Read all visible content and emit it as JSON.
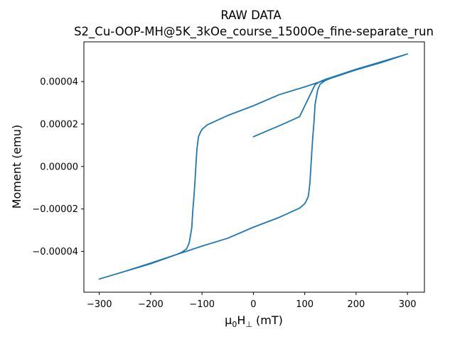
{
  "chart_data": {
    "type": "line",
    "title_line1": "RAW DATA",
    "title_line2": "S2_Cu-OOP-MH@5K_3kOe_course_1500Oe_fine-separate_run",
    "xlabel_main": "μ",
    "xlabel_sub0": "0",
    "xlabel_H": "H",
    "xlabel_perp": "⊥",
    "xlabel_unit": " (mT)",
    "ylabel": "Moment (emu)",
    "xlim": [
      -330,
      333
    ],
    "ylim": [
      -5.92e-05,
      5.87e-05
    ],
    "xticks": [
      -300,
      -200,
      -100,
      0,
      100,
      200,
      300
    ],
    "xtick_labels": [
      "−300",
      "−200",
      "−100",
      "0",
      "100",
      "200",
      "300"
    ],
    "yticks": [
      -4e-05,
      -2e-05,
      0.0,
      2e-05,
      4e-05
    ],
    "ytick_labels": [
      "−0.00004",
      "−0.00002",
      "0.00000",
      "0.00002",
      "0.00004"
    ],
    "grid": false,
    "series": [
      {
        "color": "#1f77b4",
        "x": [
          0,
          30,
          60,
          90,
          100,
          110,
          120,
          130,
          140,
          150,
          200,
          250,
          300,
          250,
          200,
          150,
          100,
          50,
          0,
          -50,
          -90,
          -100,
          -103,
          -107,
          -110,
          -112,
          -114,
          -116,
          -118,
          -120,
          -125,
          -130,
          -140,
          -150,
          -200,
          -250,
          -300,
          -250,
          -200,
          -150,
          -100,
          -50,
          0,
          50,
          90,
          100,
          103,
          107,
          110,
          112,
          114,
          116,
          118,
          120,
          125,
          130,
          140,
          150,
          200,
          250,
          300
        ],
        "y": [
          1.4e-05,
          1.71e-05,
          2.02e-05,
          2.35e-05,
          2.85e-05,
          3.35e-05,
          3.85e-05,
          4e-05,
          4.1e-05,
          4.18e-05,
          4.58e-05,
          4.94e-05,
          5.3e-05,
          4.9e-05,
          4.55e-05,
          4.15e-05,
          3.75e-05,
          3.38e-05,
          2.86e-05,
          2.4e-05,
          1.96e-05,
          1.75e-05,
          1.62e-05,
          1.4e-05,
          8e-06,
          0.0,
          -8e-06,
          -1.5e-05,
          -2.1e-05,
          -2.9e-05,
          -3.6e-05,
          -3.88e-05,
          -4.05e-05,
          -4.15e-05,
          -4.58e-05,
          -4.94e-05,
          -5.3e-05,
          -4.94e-05,
          -4.55e-05,
          -4.15e-05,
          -3.75e-05,
          -3.38e-05,
          -2.86e-05,
          -2.4e-05,
          -1.96e-05,
          -1.75e-05,
          -1.62e-05,
          -1.4e-05,
          -8e-06,
          0.0,
          8e-06,
          1.5e-05,
          2.1e-05,
          2.9e-05,
          3.6e-05,
          3.88e-05,
          4.05e-05,
          4.15e-05,
          4.58e-05,
          4.94e-05,
          5.3e-05
        ]
      }
    ]
  }
}
